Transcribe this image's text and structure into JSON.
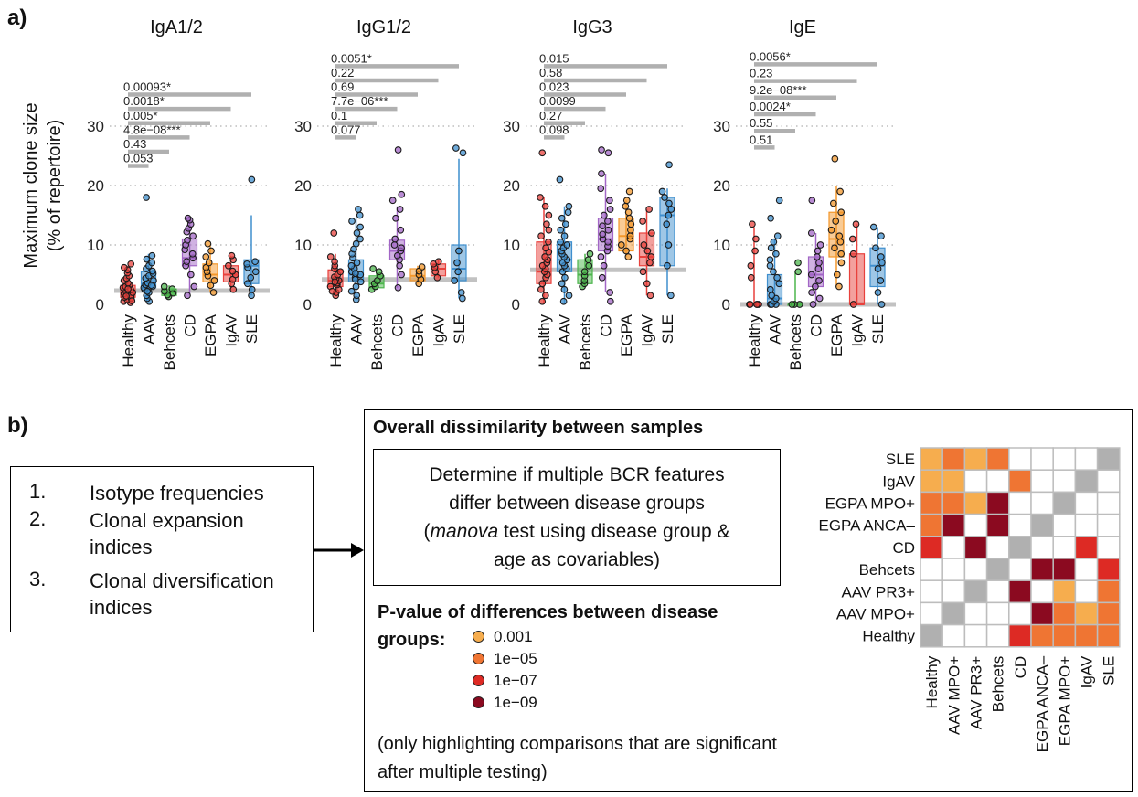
{
  "panel_a_label": "a)",
  "panel_b_label": "b)",
  "chart_data": [
    {
      "type": "box",
      "title": "IgA1/2",
      "ylabel": "Maximum clone size (% of repertoire)",
      "ylabel_lines": [
        "Maximum clone size",
        "(% of repertoire)"
      ],
      "ylim": [
        0,
        30
      ],
      "yticks": [
        0,
        10,
        20,
        30
      ],
      "grid": "dotted horizontal",
      "categories": [
        "Healthy",
        "AAV",
        "Behcets",
        "CD",
        "EGPA",
        "IgAV",
        "SLE"
      ],
      "colors": [
        "#e8413c",
        "#3f8fce",
        "#4cb54c",
        "#a266c6",
        "#f3972b",
        "#e8413c",
        "#3f8fce"
      ],
      "boxes": [
        {
          "min": 0,
          "q1": 1.2,
          "median": 2,
          "q3": 3.2,
          "max": 6.5
        },
        {
          "min": 0.5,
          "q1": 2.8,
          "median": 3.5,
          "q3": 5.5,
          "max": 8.5
        },
        {
          "min": 1.2,
          "q1": 1.5,
          "median": 2,
          "q3": 2.6,
          "max": 3.2
        },
        {
          "min": 1.5,
          "q1": 6.5,
          "median": 7.8,
          "q3": 11,
          "max": 14.5
        },
        {
          "min": 2,
          "q1": 3.8,
          "median": 5,
          "q3": 6.8,
          "max": 10
        },
        {
          "min": 2.5,
          "q1": 3.8,
          "median": 5,
          "q3": 6.5,
          "max": 8.2
        },
        {
          "min": 1.5,
          "q1": 3.5,
          "median": 6.5,
          "q3": 7.5,
          "max": 15
        }
      ],
      "points": [
        [
          0.3,
          0.5,
          0.8,
          1.0,
          1.2,
          1.5,
          1.8,
          2.0,
          2.2,
          2.5,
          2.8,
          3.0,
          3.3,
          3.6,
          4.0,
          4.4,
          4.8,
          5.3,
          5.8,
          6.2,
          6.8,
          0.6,
          1.4,
          2.6
        ],
        [
          0.5,
          1.0,
          1.5,
          2.0,
          2.5,
          2.8,
          3.0,
          3.3,
          3.6,
          4.0,
          4.4,
          4.8,
          5.2,
          5.6,
          6.0,
          6.5,
          7.0,
          7.6,
          8.2,
          18.0,
          3.2,
          2.2
        ],
        [
          1.3,
          1.6,
          1.9,
          2.2,
          2.6,
          3.0
        ],
        [
          1.5,
          3.0,
          5.0,
          6.5,
          7.2,
          7.8,
          8.5,
          9.2,
          10.0,
          10.8,
          11.5,
          12.2,
          12.8,
          13.5,
          14.2,
          14.5
        ],
        [
          2.0,
          3.2,
          4.0,
          4.8,
          5.5,
          6.2,
          7.0,
          8.0,
          9.0,
          10.2
        ],
        [
          2.5,
          3.5,
          4.2,
          5.0,
          5.6,
          6.5,
          7.5,
          8.2
        ],
        [
          1.5,
          2.5,
          3.5,
          4.5,
          5.5,
          6.2,
          6.8,
          7.2,
          21.0
        ]
      ],
      "reference_line": 2.3,
      "comparisons": [
        {
          "label": "0.053",
          "group": "AAV",
          "y": 23.3
        },
        {
          "label": "0.43",
          "group": "Behcets",
          "y": 25.7
        },
        {
          "label": "4.8e−08***",
          "group": "CD",
          "y": 28.1
        },
        {
          "label": "0.005*",
          "group": "EGPA",
          "y": 30.5
        },
        {
          "label": "0.0018*",
          "group": "IgAV",
          "y": 32.9
        },
        {
          "label": "0.00093*",
          "group": "SLE",
          "y": 35.3
        }
      ]
    },
    {
      "type": "box",
      "title": "IgG1/2",
      "ylim": [
        0,
        30
      ],
      "yticks": [
        0,
        10,
        20,
        30
      ],
      "grid": "dotted horizontal",
      "categories": [
        "Healthy",
        "AAV",
        "Behcets",
        "CD",
        "EGPA",
        "IgAV",
        "SLE"
      ],
      "colors": [
        "#e8413c",
        "#3f8fce",
        "#4cb54c",
        "#a266c6",
        "#f3972b",
        "#e8413c",
        "#3f8fce"
      ],
      "boxes": [
        {
          "min": 1.5,
          "q1": 3,
          "median": 4,
          "q3": 5.8,
          "max": 8.5
        },
        {
          "min": 0.8,
          "q1": 3.8,
          "median": 5,
          "q3": 7.5,
          "max": 14.5
        },
        {
          "min": 2.5,
          "q1": 2.8,
          "median": 3.5,
          "q3": 4.8,
          "max": 5.5
        },
        {
          "min": 2.8,
          "q1": 7.5,
          "median": 9,
          "q3": 10.8,
          "max": 16.5
        },
        {
          "min": 3.5,
          "q1": 4,
          "median": 4.8,
          "q3": 6,
          "max": 6.5
        },
        {
          "min": 4.5,
          "q1": 4.8,
          "median": 6,
          "q3": 6.8,
          "max": 7.5
        },
        {
          "min": 1,
          "q1": 4,
          "median": 6,
          "q3": 10,
          "max": 24.5
        }
      ],
      "points": [
        [
          1.5,
          2.0,
          2.5,
          3.0,
          3.3,
          3.6,
          4.0,
          4.3,
          4.6,
          5.0,
          5.5,
          6.0,
          6.5,
          7.2,
          8.0,
          12.0,
          2.2,
          3.8
        ],
        [
          0.8,
          1.5,
          2.2,
          3.0,
          3.8,
          4.5,
          5.0,
          5.5,
          6.0,
          6.5,
          7.0,
          7.8,
          8.5,
          9.3,
          10.2,
          11.0,
          12.0,
          13.0,
          14.0,
          15.0,
          16.0,
          4.2,
          5.2
        ],
        [
          2.5,
          3.0,
          3.5,
          4.0,
          4.8,
          5.5,
          6.0
        ],
        [
          2.8,
          5.0,
          6.5,
          7.5,
          8.2,
          9.0,
          9.5,
          10.0,
          11.0,
          12.5,
          14.5,
          16.0,
          17.5,
          18.5,
          26.0
        ],
        [
          3.5,
          4.2,
          5.0,
          5.6,
          6.3
        ],
        [
          4.5,
          5.5,
          6.2,
          6.8,
          7.2
        ],
        [
          1.0,
          2.0,
          4.0,
          5.5,
          7.0,
          9.0,
          25.5,
          26.3
        ]
      ],
      "reference_line": 4.2,
      "comparisons": [
        {
          "label": "0.077",
          "group": "AAV",
          "y": 28.1
        },
        {
          "label": "0.1",
          "group": "Behcets",
          "y": 30.5
        },
        {
          "label": "7.7e−06***",
          "group": "CD",
          "y": 32.9
        },
        {
          "label": "0.69",
          "group": "EGPA",
          "y": 35.3
        },
        {
          "label": "0.22",
          "group": "IgAV",
          "y": 37.7
        },
        {
          "label": "0.0051*",
          "group": "SLE",
          "y": 40.1
        }
      ]
    },
    {
      "type": "box",
      "title": "IgG3",
      "ylim": [
        0,
        30
      ],
      "yticks": [
        0,
        10,
        20,
        30
      ],
      "grid": "dotted horizontal",
      "categories": [
        "Healthy",
        "AAV",
        "Behcets",
        "CD",
        "EGPA",
        "IgAV",
        "SLE"
      ],
      "colors": [
        "#e8413c",
        "#3f8fce",
        "#4cb54c",
        "#a266c6",
        "#f3972b",
        "#e8413c",
        "#3f8fce"
      ],
      "boxes": [
        {
          "min": 0,
          "q1": 3.5,
          "median": 5.5,
          "q3": 10.5,
          "max": 18
        },
        {
          "min": 0,
          "q1": 5.5,
          "median": 7.5,
          "q3": 10.5,
          "max": 16.5
        },
        {
          "min": 3,
          "q1": 3.5,
          "median": 5,
          "q3": 7.5,
          "max": 8.5
        },
        {
          "min": 2,
          "q1": 9,
          "median": 11,
          "q3": 14.5,
          "max": 22
        },
        {
          "min": 8,
          "q1": 9,
          "median": 11.5,
          "q3": 14.5,
          "max": 17.5
        },
        {
          "min": 1.5,
          "q1": 6.5,
          "median": 8,
          "q3": 12,
          "max": 16
        },
        {
          "min": 1.5,
          "q1": 6.5,
          "median": 15,
          "q3": 18,
          "max": 19.5
        }
      ],
      "points": [
        [
          0.5,
          1.5,
          2.5,
          3.5,
          4.5,
          5.0,
          5.5,
          6.0,
          6.5,
          7.0,
          7.5,
          8.0,
          8.8,
          9.5,
          10.5,
          11.5,
          12.5,
          13.5,
          15.0,
          16.5,
          18.0,
          25.5
        ],
        [
          0.5,
          1.5,
          2.5,
          3.5,
          4.5,
          5.5,
          6.0,
          6.5,
          7.0,
          7.5,
          8.0,
          8.5,
          9.0,
          9.5,
          10.0,
          10.5,
          11.5,
          12.5,
          13.5,
          14.5,
          15.5,
          16.5,
          21.0
        ],
        [
          3.0,
          3.5,
          4.0,
          4.8,
          5.5,
          6.5,
          7.5,
          8.5
        ],
        [
          0.5,
          2.0,
          4.5,
          6.5,
          8.0,
          9.0,
          9.8,
          10.5,
          11.0,
          11.8,
          12.5,
          13.2,
          14.0,
          15.0,
          16.0,
          17.5,
          19.5,
          22.0,
          25.5,
          26.0
        ],
        [
          8.0,
          9.0,
          10.0,
          11.0,
          11.5,
          12.5,
          13.5,
          14.5,
          15.5,
          16.5,
          17.5,
          19.0
        ],
        [
          1.5,
          3.5,
          5.5,
          7.0,
          8.0,
          9.0,
          10.0,
          12.0,
          14.0,
          16.0
        ],
        [
          1.5,
          6.5,
          10.0,
          13.5,
          15.0,
          16.0,
          17.0,
          18.0,
          19.0,
          23.5
        ]
      ],
      "reference_line": 5.8,
      "comparisons": [
        {
          "label": "0.098",
          "group": "AAV",
          "y": 28.1
        },
        {
          "label": "0.27",
          "group": "Behcets",
          "y": 30.5
        },
        {
          "label": "0.0099",
          "group": "CD",
          "y": 32.9
        },
        {
          "label": "0.023",
          "group": "EGPA",
          "y": 35.3
        },
        {
          "label": "0.58",
          "group": "IgAV",
          "y": 37.7
        },
        {
          "label": "0.015",
          "group": "SLE",
          "y": 40.1
        }
      ]
    },
    {
      "type": "box",
      "title": "IgE",
      "ylim": [
        0,
        30
      ],
      "yticks": [
        0,
        10,
        20,
        30
      ],
      "grid": "dotted horizontal",
      "categories": [
        "Healthy",
        "AAV",
        "Behcets",
        "CD",
        "EGPA",
        "IgAV",
        "SLE"
      ],
      "colors": [
        "#e8413c",
        "#3f8fce",
        "#4cb54c",
        "#a266c6",
        "#f3972b",
        "#e8413c",
        "#3f8fce"
      ],
      "boxes": [
        {
          "min": 0,
          "q1": 0,
          "median": 0,
          "q3": 0,
          "max": 13
        },
        {
          "min": 0,
          "q1": 0,
          "median": 1,
          "q3": 5,
          "max": 11
        },
        {
          "min": 0,
          "q1": 0,
          "median": 0,
          "q3": 0,
          "max": 5.5
        },
        {
          "min": 0,
          "q1": 3,
          "median": 5,
          "q3": 8,
          "max": 12
        },
        {
          "min": 3,
          "q1": 8,
          "median": 11,
          "q3": 15.5,
          "max": 20
        },
        {
          "min": 0,
          "q1": 0,
          "median": 0,
          "q3": 8.5,
          "max": 13.5
        },
        {
          "min": 0,
          "q1": 3,
          "median": 6.5,
          "q3": 9.5,
          "max": 13
        }
      ],
      "points": [
        [
          0,
          0,
          0,
          0,
          0,
          4.5,
          6.5,
          9.0,
          11.0,
          13.5
        ],
        [
          0,
          0,
          0,
          0.5,
          1.0,
          1.5,
          2.5,
          3.5,
          4.5,
          5.5,
          6.5,
          7.5,
          8.5,
          9.5,
          10.5,
          11.5,
          14.5,
          17.5
        ],
        [
          0,
          0,
          0,
          5.5,
          7.0
        ],
        [
          0,
          1.0,
          2.0,
          3.0,
          4.0,
          5.0,
          6.0,
          7.0,
          8.0,
          9.0,
          10.0,
          12.0,
          17.5
        ],
        [
          3.0,
          5.0,
          7.0,
          8.5,
          9.5,
          10.5,
          11.5,
          12.5,
          14.0,
          15.5,
          17.0,
          19.0,
          24.5
        ],
        [
          0,
          8.5,
          11.0,
          13.5
        ],
        [
          0,
          2.0,
          4.0,
          6.0,
          7.0,
          8.0,
          9.5,
          11.5,
          13.0
        ]
      ],
      "reference_line": 0,
      "comparisons": [
        {
          "label": "0.51",
          "group": "AAV",
          "y": 26.4
        },
        {
          "label": "0.55",
          "group": "Behcets",
          "y": 29.2
        },
        {
          "label": "0.0024*",
          "group": "CD",
          "y": 32.0
        },
        {
          "label": "9.2e−08***",
          "group": "EGPA",
          "y": 34.8
        },
        {
          "label": "0.23",
          "group": "IgAV",
          "y": 37.6
        },
        {
          "label": "0.0056*",
          "group": "SLE",
          "y": 40.4
        }
      ]
    },
    {
      "type": "heatmap",
      "rows": [
        "SLE",
        "IgAV",
        "EGPA MPO+",
        "EGPA ANCA–",
        "CD",
        "Behcets",
        "AAV PR3+",
        "AAV MPO+",
        "Healthy"
      ],
      "cols": [
        "Healthy",
        "AAV MPO+",
        "AAV PR3+",
        "Behcets",
        "CD",
        "EGPA ANCA–",
        "EGPA MPO+",
        "IgAV",
        "SLE"
      ],
      "legend_title": "P-value of differences between disease groups:",
      "legend": [
        {
          "label": "0.001",
          "color": "#f6ad4e"
        },
        {
          "label": "1e−05",
          "color": "#ef7533"
        },
        {
          "label": "1e−07",
          "color": "#dd2a24"
        },
        {
          "label": "1e−09",
          "color": "#8b0a20"
        }
      ],
      "diagonal_color": "#b0b0b0",
      "levels_note": "0 = not significant, 1 = 0.001, 2 = 1e-05, 3 = 1e-07, 4 = 1e-09",
      "values": [
        [
          1,
          2,
          1,
          2,
          0,
          0,
          0,
          0,
          0
        ],
        [
          1,
          1,
          0,
          0,
          2,
          0,
          0,
          0,
          0
        ],
        [
          2,
          2,
          1,
          4,
          0,
          0,
          0,
          0,
          0
        ],
        [
          2,
          4,
          0,
          4,
          0,
          0,
          0,
          0,
          0
        ],
        [
          3,
          0,
          4,
          0,
          0,
          0,
          0,
          3,
          0
        ],
        [
          0,
          0,
          0,
          0,
          0,
          4,
          4,
          0,
          3
        ],
        [
          0,
          0,
          0,
          0,
          4,
          0,
          1,
          0,
          2
        ],
        [
          0,
          0,
          0,
          0,
          0,
          4,
          2,
          1,
          2
        ],
        [
          0,
          0,
          0,
          0,
          3,
          2,
          2,
          2,
          2
        ]
      ]
    }
  ],
  "list": [
    {
      "num": "1.",
      "text": "Isotype frequencies"
    },
    {
      "num": "2.",
      "text": "Clonal expansion indices"
    },
    {
      "num": "3.",
      "text": "Clonal diversification indices"
    }
  ],
  "overall": {
    "title": "Overall dissimilarity between samples",
    "box_line1": "Determine if multiple BCR features",
    "box_line2": "differ between disease groups",
    "box_line3_italic": "manova",
    "box_line3_rest": " test using disease group &",
    "box_line3_open": "(",
    "box_line4": "age as covariables)",
    "pvalue_title": "P-value of differences between disease groups:",
    "note": "(only highlighting comparisons that are significant after multiple testing)"
  }
}
